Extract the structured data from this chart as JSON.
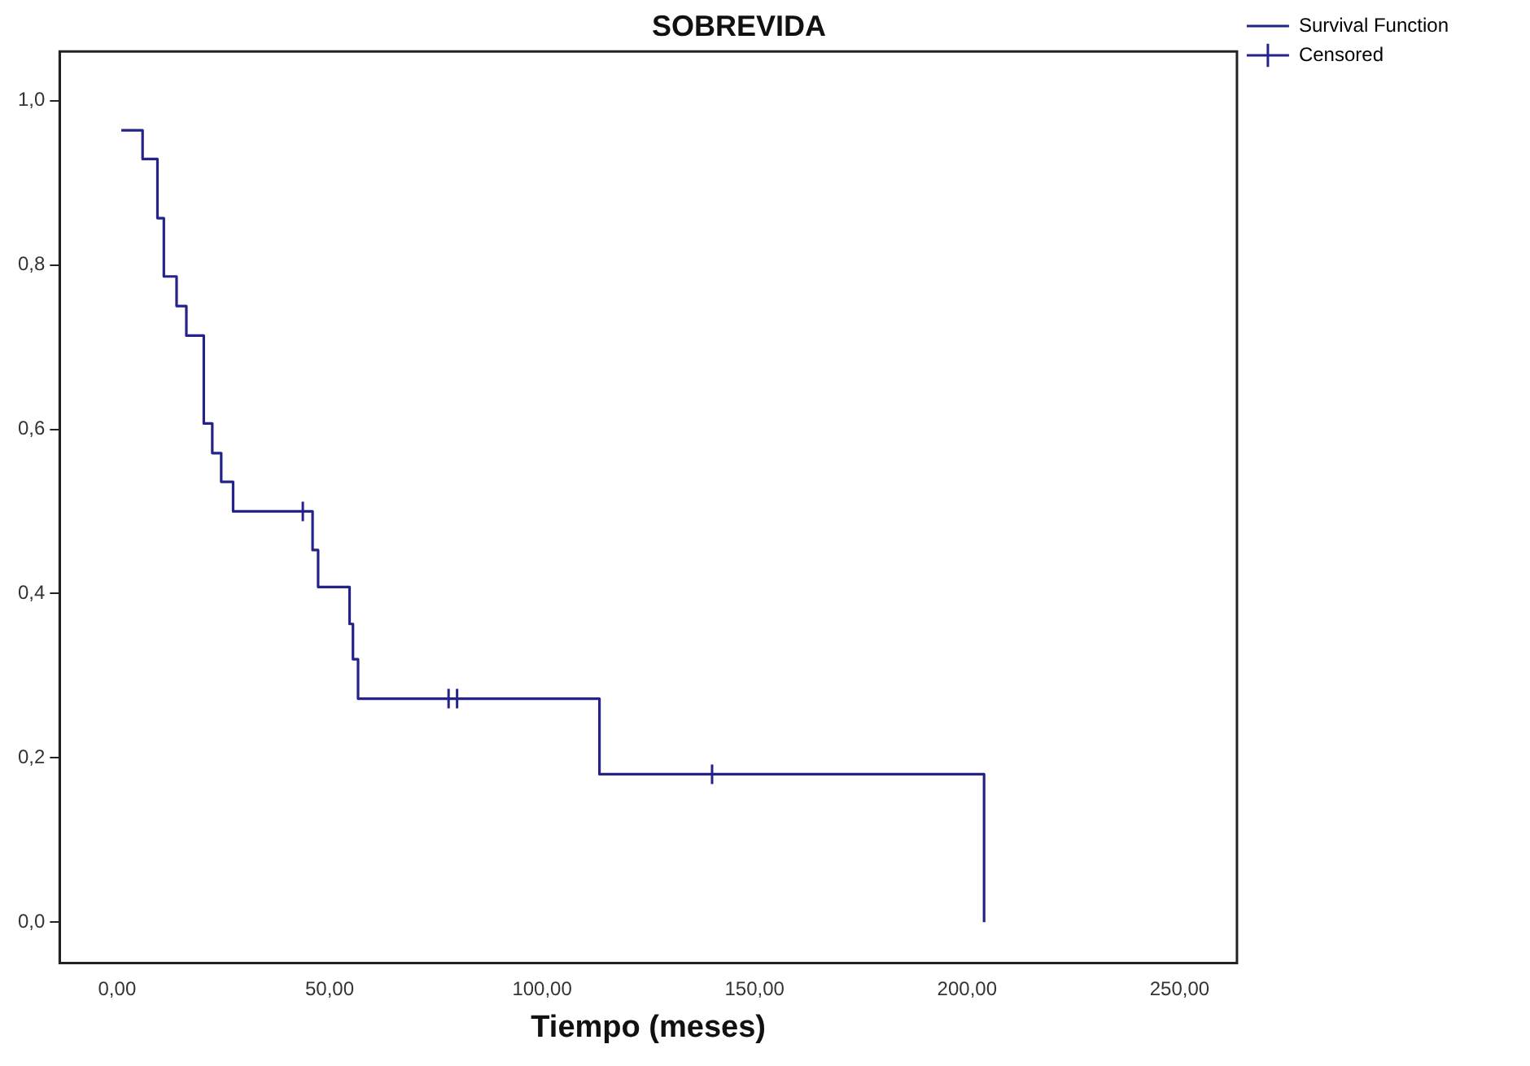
{
  "chart_data": {
    "type": "step",
    "title": "SOBREVIDA",
    "xlabel": "Tiempo (meses)",
    "legend": "right",
    "grid": false,
    "xlim": [
      -13.5,
      263.5
    ],
    "xticks": [
      {
        "value": 0,
        "label": "0,00"
      },
      {
        "value": 50,
        "label": "50,00"
      },
      {
        "value": 100,
        "label": "100,00"
      },
      {
        "value": 150,
        "label": "150,00"
      },
      {
        "value": 200,
        "label": "200,00"
      },
      {
        "value": 250,
        "label": "250,00"
      }
    ],
    "ylim": [
      -0.05,
      1.06
    ],
    "yticks": [
      {
        "value": 0,
        "label": "0,0"
      },
      {
        "value": 0.2,
        "label": "0,2"
      },
      {
        "value": 0.4,
        "label": "0,4"
      },
      {
        "value": 0.6,
        "label": "0,6"
      },
      {
        "value": 0.8,
        "label": "0,8"
      },
      {
        "value": 1,
        "label": "1,0"
      }
    ],
    "series": [
      {
        "name": "Survival Function",
        "color": "#23238a",
        "marker": "none",
        "x": [
          1,
          6,
          9.5,
          11,
          14,
          16.3,
          20.4,
          22.4,
          24.5,
          27.3,
          46,
          47.3,
          54.7,
          55.5,
          56.7,
          113.5,
          204
        ],
        "values": [
          0.964,
          0.929,
          0.857,
          0.786,
          0.75,
          0.714,
          0.607,
          0.571,
          0.536,
          0.5,
          0.453,
          0.408,
          0.363,
          0.32,
          0.272,
          0.18,
          0
        ]
      },
      {
        "name": "Censored",
        "type": "scatter",
        "color": "#23238a",
        "marker": "cross",
        "x": [
          43.7,
          78,
          80,
          140
        ],
        "values": [
          0.5,
          0.272,
          0.272,
          0.18
        ]
      }
    ]
  }
}
